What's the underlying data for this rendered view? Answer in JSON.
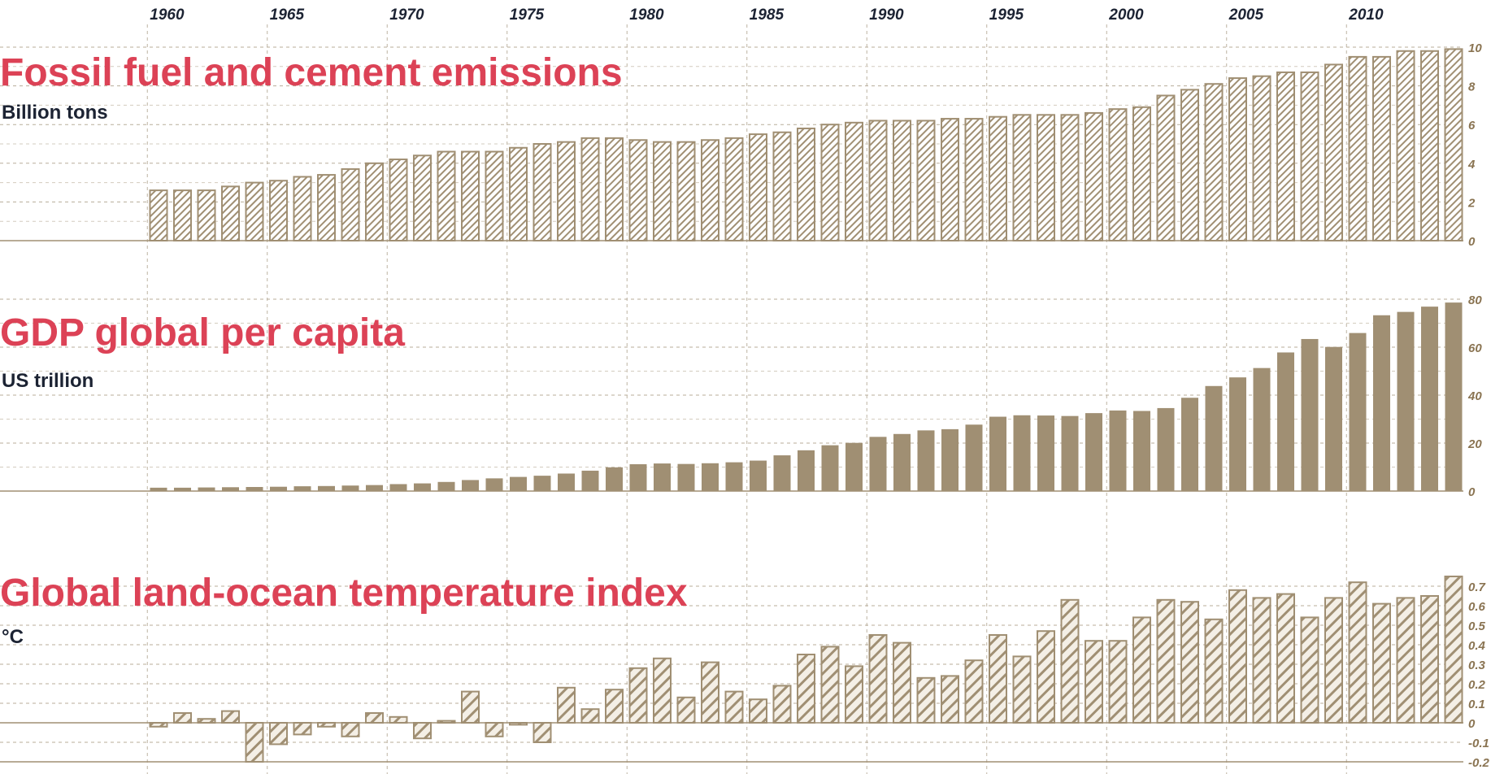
{
  "colors": {
    "bar": "#a08f73",
    "title": "#dc4256",
    "text": "#1c2333",
    "grid": "#8a7452"
  },
  "chart_data": {
    "x_tick_labels": [
      "1960",
      "1965",
      "1970",
      "1975",
      "1980",
      "1985",
      "1990",
      "1995",
      "2000",
      "2005",
      "2010"
    ],
    "years": [
      1960,
      1961,
      1962,
      1963,
      1964,
      1965,
      1966,
      1967,
      1968,
      1969,
      1970,
      1971,
      1972,
      1973,
      1974,
      1975,
      1976,
      1977,
      1978,
      1979,
      1980,
      1981,
      1982,
      1983,
      1984,
      1985,
      1986,
      1987,
      1988,
      1989,
      1990,
      1991,
      1992,
      1993,
      1994,
      1995,
      1996,
      1997,
      1998,
      1999,
      2000,
      2001,
      2002,
      2003,
      2004,
      2005,
      2006,
      2007,
      2008,
      2009,
      2010,
      2011,
      2012,
      2013,
      2014
    ],
    "panels": [
      {
        "type": "bar",
        "title": "Fossil fuel and cement emissions",
        "unit": "Billion tons",
        "pattern": "fine-hatch",
        "ylim": [
          0,
          10
        ],
        "yticks": [
          0,
          2,
          4,
          6,
          8,
          10
        ],
        "ytick_labels": [
          "0",
          "2",
          "4",
          "6",
          "8",
          "10"
        ],
        "values": [
          2.6,
          2.6,
          2.6,
          2.8,
          3.0,
          3.1,
          3.3,
          3.4,
          3.7,
          4.0,
          4.2,
          4.4,
          4.6,
          4.6,
          4.6,
          4.8,
          5.0,
          5.1,
          5.3,
          5.3,
          5.2,
          5.1,
          5.1,
          5.2,
          5.3,
          5.5,
          5.6,
          5.8,
          6.0,
          6.1,
          6.2,
          6.2,
          6.2,
          6.3,
          6.3,
          6.4,
          6.5,
          6.5,
          6.5,
          6.6,
          6.8,
          6.9,
          7.5,
          7.8,
          8.1,
          8.4,
          8.5,
          8.7,
          8.7,
          9.1,
          9.5,
          9.5,
          9.8,
          9.8,
          9.9
        ]
      },
      {
        "type": "bar",
        "title": "GDP global per capita",
        "unit": "US trillion",
        "pattern": "solid",
        "ylim": [
          0,
          80
        ],
        "yticks": [
          0,
          20,
          40,
          60,
          80
        ],
        "ytick_labels": [
          "0",
          "20",
          "40",
          "60",
          "80"
        ],
        "values": [
          1.4,
          1.4,
          1.5,
          1.6,
          1.7,
          1.8,
          2.0,
          2.1,
          2.3,
          2.5,
          2.9,
          3.2,
          3.8,
          4.6,
          5.3,
          5.9,
          6.4,
          7.3,
          8.5,
          9.9,
          11.2,
          11.5,
          11.3,
          11.6,
          12.0,
          12.7,
          14.9,
          17.0,
          19.1,
          20.1,
          22.6,
          23.8,
          25.3,
          25.8,
          27.7,
          31.0,
          31.6,
          31.5,
          31.3,
          32.5,
          33.6,
          33.4,
          34.6,
          38.9,
          43.8,
          47.4,
          51.3,
          57.8,
          63.4,
          60.1,
          65.9,
          73.3,
          74.7,
          76.9,
          78.6
        ]
      },
      {
        "type": "bar",
        "title": "Global land-ocean temperature index",
        "unit": "°C",
        "pattern": "wide-hatch",
        "ylim": [
          -0.2,
          0.8
        ],
        "yticks": [
          -0.2,
          -0.1,
          0,
          0.1,
          0.2,
          0.3,
          0.4,
          0.5,
          0.6,
          0.7
        ],
        "ytick_labels": [
          "-0.2",
          "-0.1",
          "0",
          "0.1",
          "0.2",
          "0.3",
          "0.4",
          "0.5",
          "0.6",
          "0.7"
        ],
        "values": [
          -0.02,
          0.05,
          0.02,
          0.06,
          -0.2,
          -0.11,
          -0.06,
          -0.02,
          -0.07,
          0.05,
          0.03,
          -0.08,
          0.01,
          0.16,
          -0.07,
          -0.01,
          -0.1,
          0.18,
          0.07,
          0.17,
          0.28,
          0.33,
          0.13,
          0.31,
          0.16,
          0.12,
          0.19,
          0.35,
          0.39,
          0.29,
          0.45,
          0.41,
          0.23,
          0.24,
          0.32,
          0.45,
          0.34,
          0.47,
          0.63,
          0.42,
          0.42,
          0.54,
          0.63,
          0.62,
          0.53,
          0.68,
          0.64,
          0.66,
          0.54,
          0.64,
          0.72,
          0.61,
          0.64,
          0.65,
          0.75
        ]
      }
    ]
  }
}
